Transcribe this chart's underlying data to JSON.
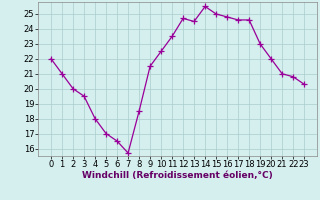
{
  "x": [
    0,
    1,
    2,
    3,
    4,
    5,
    6,
    7,
    8,
    9,
    10,
    11,
    12,
    13,
    14,
    15,
    16,
    17,
    18,
    19,
    20,
    21,
    22,
    23
  ],
  "y": [
    22.0,
    21.0,
    20.0,
    19.5,
    18.0,
    17.0,
    16.5,
    15.7,
    18.5,
    21.5,
    22.5,
    23.5,
    24.7,
    24.5,
    25.5,
    25.0,
    24.8,
    24.6,
    24.6,
    23.0,
    22.0,
    21.0,
    20.8,
    20.3
  ],
  "line_color": "#990099",
  "marker": "+",
  "marker_size": 4,
  "bg_color": "#d5eeee",
  "grid_color": "#aacccc",
  "xlabel": "Windchill (Refroidissement éolien,°C)",
  "xlabel_color": "#660066",
  "xlabel_fontsize": 6.5,
  "tick_fontsize": 6,
  "ylim": [
    15.5,
    25.8
  ],
  "yticks": [
    16,
    17,
    18,
    19,
    20,
    21,
    22,
    23,
    24,
    25
  ],
  "xticks": [
    0,
    1,
    2,
    3,
    4,
    5,
    6,
    7,
    8,
    9,
    10,
    11,
    12,
    13,
    14,
    15,
    16,
    17,
    18,
    19,
    20,
    21,
    22,
    23
  ],
  "spine_color": "#888888",
  "linewidth": 0.9,
  "markeredgewidth": 0.9
}
